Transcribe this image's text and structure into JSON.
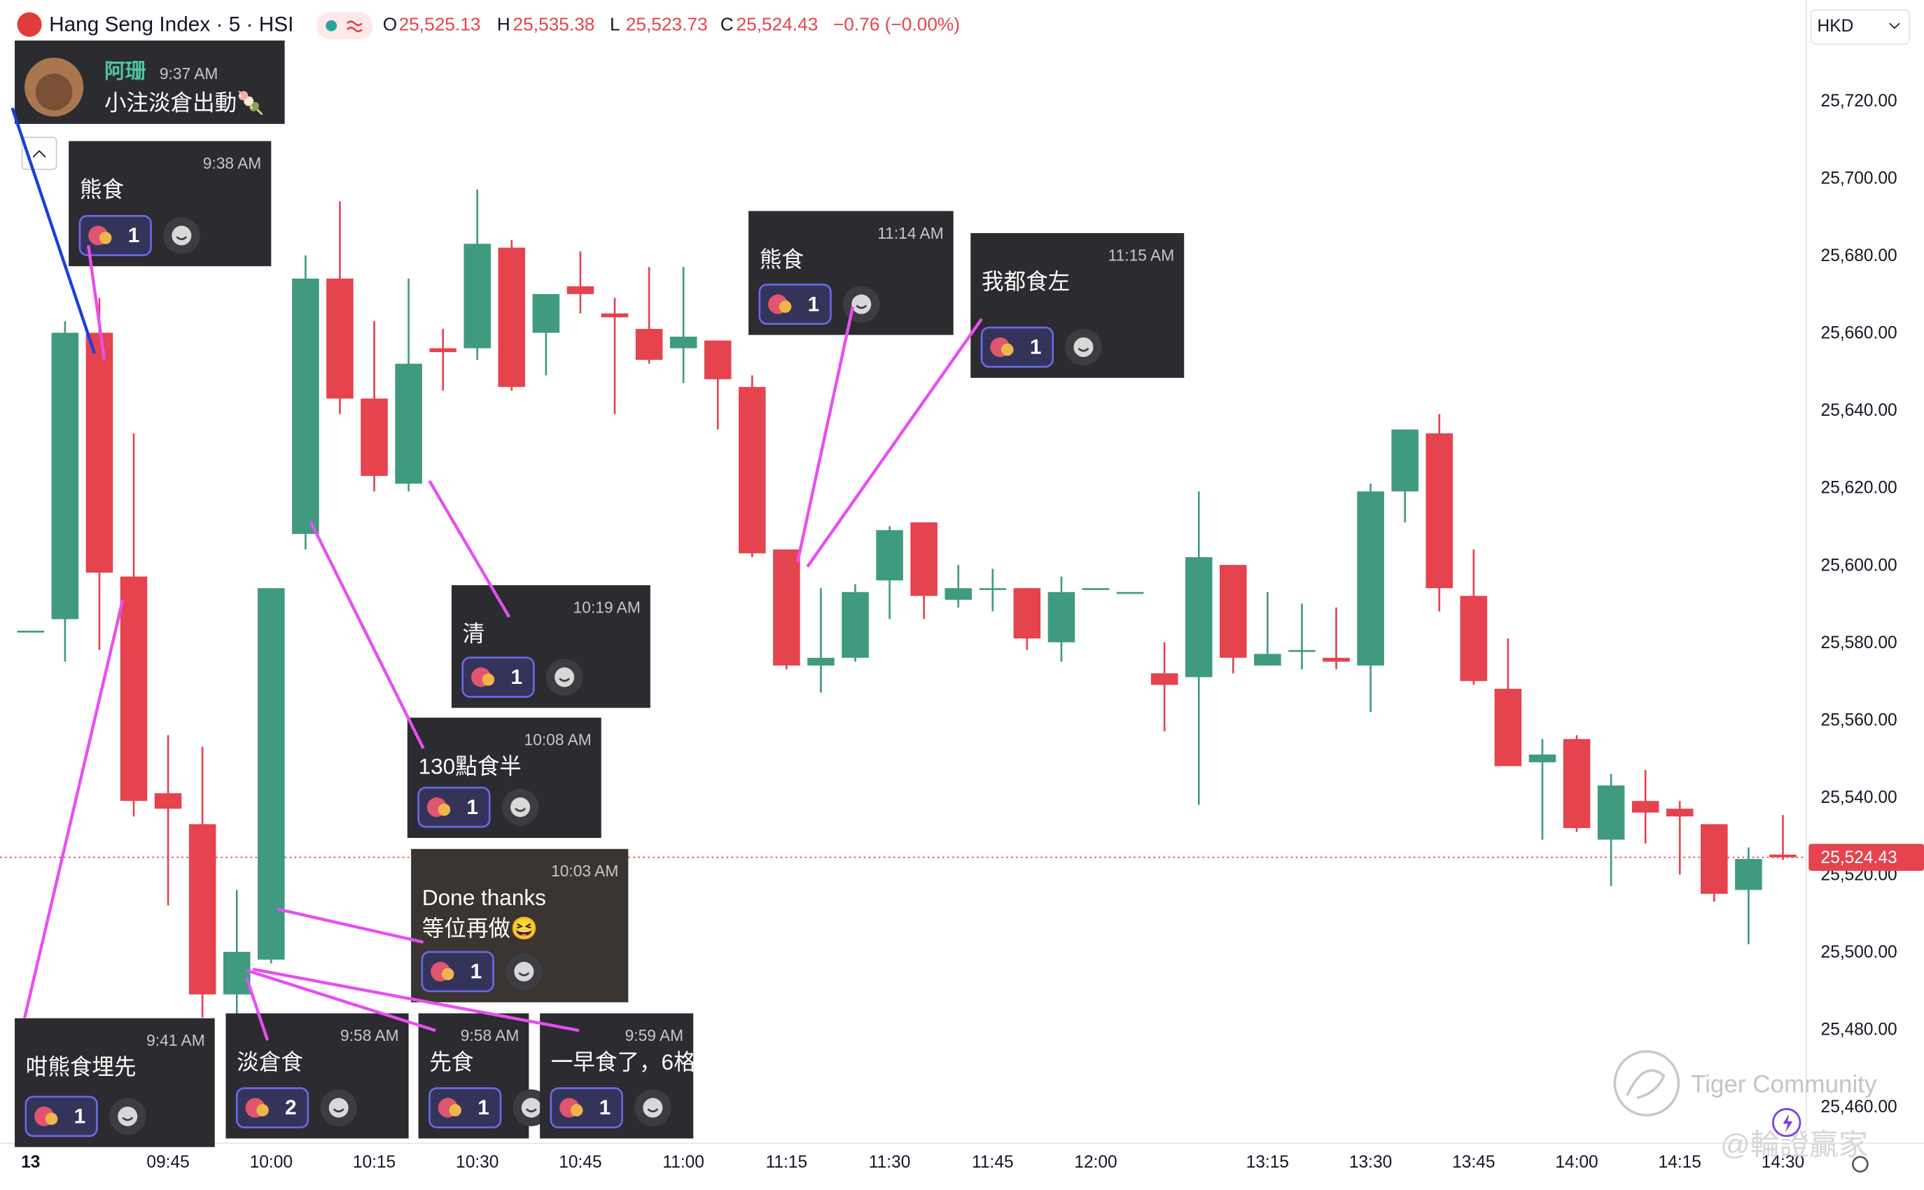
{
  "header": {
    "symbol": "Hang Seng Index · 5 · HSI",
    "ohlc": [
      {
        "key": "O",
        "value": "25,525.13"
      },
      {
        "key": "H",
        "value": "25,535.38"
      },
      {
        "key": "L",
        "value": "25,523.73"
      },
      {
        "key": "C",
        "value": "25,524.43"
      }
    ],
    "change": "−0.76 (−0.00%)",
    "currency": "HKD"
  },
  "chart_data": {
    "type": "candlestick",
    "up_color": "#3f9a80",
    "down_color": "#e5434d",
    "grid": true,
    "categories": [
      "13",
      null,
      null,
      null,
      "09:45",
      null,
      null,
      "10:00",
      null,
      null,
      "10:15",
      null,
      null,
      "10:30",
      null,
      null,
      "10:45",
      null,
      null,
      "11:00",
      null,
      null,
      "11:15",
      null,
      null,
      "11:30",
      null,
      null,
      "11:45",
      null,
      null,
      "12:00",
      null,
      null,
      null,
      null,
      "13:15",
      null,
      null,
      "13:30",
      null,
      null,
      "13:45",
      null,
      null,
      "14:00",
      null,
      null,
      "14:15",
      null,
      null,
      "14:30"
    ],
    "open": [
      25583,
      25586,
      25660,
      25597,
      25541,
      25533,
      25489,
      25498,
      25608,
      25674,
      25643,
      25621,
      25656,
      25656,
      25682,
      25660,
      25672,
      25665,
      25661,
      25656,
      25658,
      25646,
      25604,
      25574,
      25576,
      25596,
      25611,
      25591,
      25594,
      25594,
      25580,
      25594,
      25593,
      25572,
      25571,
      25600,
      25574,
      25578,
      25576,
      25574,
      25619,
      25634,
      25592,
      25568,
      25549,
      25555,
      25529,
      25539,
      25537,
      25533,
      25516,
      25525.13
    ],
    "high": [
      25583,
      25663,
      25669,
      25634,
      25556,
      25553,
      25516,
      25594,
      25680,
      25694,
      25663,
      25674,
      25661,
      25697,
      25684,
      25670,
      25681,
      25669,
      25677,
      25677,
      25658,
      25649,
      25604,
      25594,
      25595,
      25610,
      25611,
      25600,
      25599,
      25594,
      25597,
      25594,
      25593,
      25580,
      25619,
      25600,
      25593,
      25590,
      25589,
      25621,
      25635,
      25639,
      25604,
      25581,
      25555,
      25556,
      25546,
      25547,
      25539,
      25533,
      25527,
      25535.38
    ],
    "low": [
      25583,
      25575,
      25578,
      25535,
      25512,
      25483,
      25483,
      25497,
      25604,
      25639,
      25619,
      25619,
      25645,
      25653,
      25645,
      25649,
      25665,
      25639,
      25652,
      25647,
      25635,
      25602,
      25573,
      25567,
      25575,
      25586,
      25586,
      25589,
      25588,
      25578,
      25575,
      25594,
      25593,
      25557,
      25538,
      25572,
      25574,
      25573,
      25573,
      25562,
      25611,
      25588,
      25569,
      25548,
      25529,
      25531,
      25517,
      25528,
      25520,
      25513,
      25502,
      25523.73
    ],
    "close": [
      25583,
      25660,
      25598,
      25539,
      25537,
      25489,
      25500,
      25594,
      25674,
      25643,
      25623,
      25652,
      25655,
      25683,
      25646,
      25670,
      25670,
      25664,
      25653,
      25659,
      25648,
      25603,
      25574,
      25576,
      25593,
      25609,
      25592,
      25594,
      25594,
      25581,
      25593,
      25594,
      25593,
      25569,
      25602,
      25576,
      25577,
      25578,
      25575,
      25619,
      25635,
      25594,
      25570,
      25548,
      25551,
      25532,
      25543,
      25536,
      25535,
      25515,
      25524,
      25524.43
    ],
    "ylim": [
      25450,
      25746
    ],
    "yticks": [
      {
        "value": 25460,
        "label": "25,460.00"
      },
      {
        "value": 25480,
        "label": "25,480.00"
      },
      {
        "value": 25500,
        "label": "25,500.00"
      },
      {
        "value": 25520,
        "label": "25,520.00"
      },
      {
        "value": 25540,
        "label": "25,540.00"
      },
      {
        "value": 25560,
        "label": "25,560.00"
      },
      {
        "value": 25580,
        "label": "25,580.00"
      },
      {
        "value": 25600,
        "label": "25,600.00"
      },
      {
        "value": 25620,
        "label": "25,620.00"
      },
      {
        "value": 25640,
        "label": "25,640.00"
      },
      {
        "value": 25660,
        "label": "25,660.00"
      },
      {
        "value": 25680,
        "label": "25,680.00"
      },
      {
        "value": 25700,
        "label": "25,700.00"
      },
      {
        "value": 25720,
        "label": "25,720.00"
      }
    ],
    "last_price": {
      "value": 25524.43,
      "label": "25,524.43"
    }
  },
  "annotations": [
    {
      "name": "阿珊",
      "time": "9:37 AM",
      "lines": [
        "小注淡倉出動🍡"
      ]
    },
    {
      "time": "9:38 AM",
      "lines": [
        "熊食"
      ],
      "reactions": "1"
    },
    {
      "time": "11:14 AM",
      "lines": [
        "熊食"
      ],
      "reactions": "1"
    },
    {
      "time": "11:15 AM",
      "lines": [
        "我都食左"
      ],
      "reactions": "1"
    },
    {
      "time": "10:19 AM",
      "lines": [
        "清"
      ],
      "reactions": "1"
    },
    {
      "time": "10:08 AM",
      "lines": [
        "130點食半"
      ],
      "reactions": "1"
    },
    {
      "time": "10:03 AM",
      "lines": [
        "Done thanks",
        "等位再做😆"
      ],
      "reactions": "1"
    },
    {
      "time": "9:41 AM",
      "lines": [
        "咁熊食埋先"
      ],
      "reactions": "1"
    },
    {
      "time": "9:58 AM",
      "lines": [
        "淡倉食"
      ],
      "reactions": "2"
    },
    {
      "time": "9:58 AM",
      "lines": [
        "先食"
      ],
      "reactions": "1"
    },
    {
      "time": "9:59 AM",
      "lines": [
        "一早食了，6格"
      ],
      "reactions": "1"
    }
  ],
  "watermark": {
    "brand": "Tiger Community",
    "handle": "@輪證贏家"
  }
}
